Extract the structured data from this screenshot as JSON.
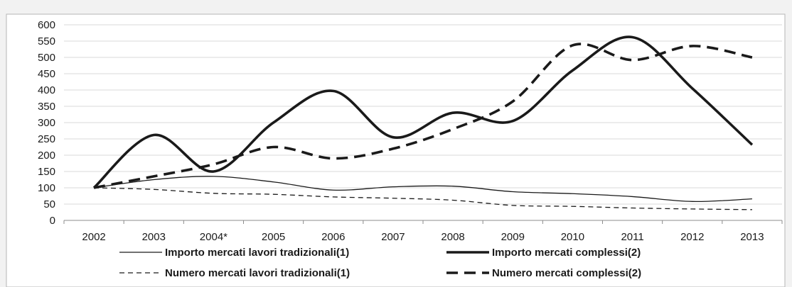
{
  "chart_data": {
    "type": "line",
    "title": "",
    "xlabel": "",
    "ylabel": "",
    "categories": [
      "2002",
      "2003",
      "2004*",
      "2005",
      "2006",
      "2007",
      "2008",
      "2009",
      "2010",
      "2011",
      "2012",
      "2013"
    ],
    "ylim": [
      0,
      600
    ],
    "yticks": [
      0,
      50,
      100,
      150,
      200,
      250,
      300,
      350,
      400,
      450,
      500,
      550,
      600
    ],
    "grid": true,
    "legend_position": "bottom",
    "series": [
      {
        "name": "Importo mercati lavori tradizionali(1)",
        "style": "thin-solid",
        "color": "#1a1a1a",
        "values": [
          100,
          125,
          135,
          118,
          93,
          103,
          105,
          88,
          82,
          73,
          58,
          66
        ]
      },
      {
        "name": "Importo mercati complessi(2)",
        "style": "thick-solid",
        "color": "#1a1a1a",
        "values": [
          100,
          262,
          150,
          300,
          397,
          255,
          330,
          305,
          460,
          562,
          405,
          232
        ]
      },
      {
        "name": "Numero mercati lavori tradizionali(1)",
        "style": "thin-dashed",
        "color": "#1a1a1a",
        "values": [
          100,
          95,
          83,
          80,
          72,
          68,
          62,
          46,
          43,
          38,
          35,
          33
        ]
      },
      {
        "name": "Numero mercati complessi(2)",
        "style": "thick-dashed",
        "color": "#1a1a1a",
        "values": [
          100,
          135,
          172,
          225,
          190,
          220,
          280,
          365,
          537,
          492,
          535,
          500
        ]
      }
    ]
  }
}
